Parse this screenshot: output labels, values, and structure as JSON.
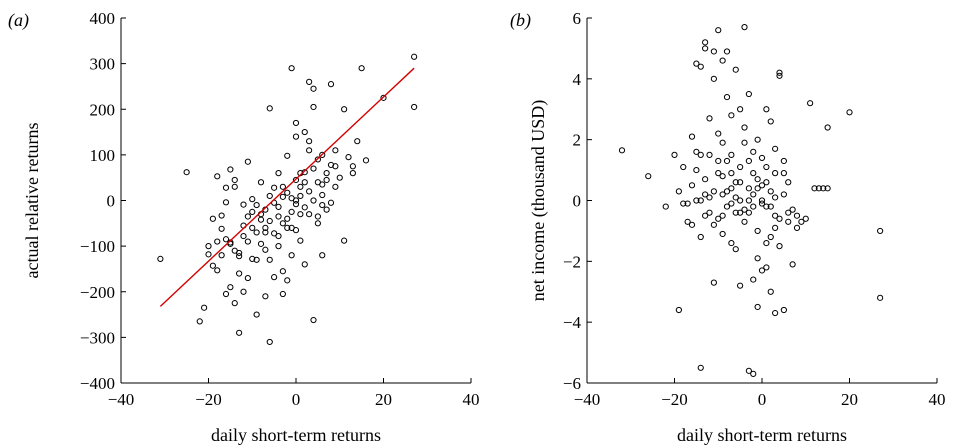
{
  "chart_data": [
    {
      "type": "scatter",
      "panel_label": "(a)",
      "xlabel": "daily short-term returns",
      "ylabel": "actual relative returns",
      "xlim": [
        -40,
        40
      ],
      "ylim": [
        -400,
        400
      ],
      "xticks": [
        -40,
        -20,
        0,
        20,
        40
      ],
      "yticks": [
        -400,
        -300,
        -200,
        -100,
        0,
        100,
        200,
        300,
        400
      ],
      "grid": false,
      "legend": "none",
      "fit_line": {
        "x": [
          -31,
          27
        ],
        "y": [
          -232,
          290
        ],
        "color": "#d40000"
      },
      "points": [
        [
          -31,
          -128
        ],
        [
          -25,
          62
        ],
        [
          -22,
          -265
        ],
        [
          -21,
          -235
        ],
        [
          -20,
          -100
        ],
        [
          -19,
          -143
        ],
        [
          -19,
          -40
        ],
        [
          -18,
          53
        ],
        [
          -17,
          -120
        ],
        [
          -17,
          -62
        ],
        [
          -16,
          28
        ],
        [
          -16,
          -4
        ],
        [
          -15,
          -95
        ],
        [
          -15,
          68
        ],
        [
          -14,
          45
        ],
        [
          -14,
          -225
        ],
        [
          -14,
          -110
        ],
        [
          -13,
          -115
        ],
        [
          -13,
          -122
        ],
        [
          -12,
          -78
        ],
        [
          -13,
          -290
        ],
        [
          -12,
          -9
        ],
        [
          -11,
          -35
        ],
        [
          -11,
          85
        ],
        [
          -11,
          -170
        ],
        [
          -10,
          -128
        ],
        [
          -10,
          3
        ],
        [
          -9,
          -250
        ],
        [
          -9,
          -130
        ],
        [
          -8,
          -95
        ],
        [
          -8,
          -42
        ],
        [
          -8,
          40
        ],
        [
          -7,
          -210
        ],
        [
          -7,
          -20
        ],
        [
          -7,
          -108
        ],
        [
          -6,
          -310
        ],
        [
          -6,
          10
        ],
        [
          -6,
          202
        ],
        [
          -5,
          -72
        ],
        [
          -5,
          -168
        ],
        [
          -4,
          60
        ],
        [
          -4,
          -14
        ],
        [
          -4,
          -35
        ],
        [
          -3,
          -155
        ],
        [
          -3,
          -205
        ],
        [
          -3,
          -50
        ],
        [
          -2,
          -60
        ],
        [
          -2,
          17
        ],
        [
          -2,
          98
        ],
        [
          -1,
          -25
        ],
        [
          -1,
          5
        ],
        [
          -1,
          -120
        ],
        [
          0,
          -8
        ],
        [
          0,
          45
        ],
        [
          0,
          140
        ],
        [
          1,
          -30
        ],
        [
          1,
          30
        ],
        [
          1,
          -88
        ],
        [
          2,
          62
        ],
        [
          2,
          -140
        ],
        [
          3,
          20
        ],
        [
          3,
          110
        ],
        [
          3,
          260
        ],
        [
          4,
          -262
        ],
        [
          4,
          0
        ],
        [
          4,
          245
        ],
        [
          5,
          90
        ],
        [
          5,
          -50
        ],
        [
          6,
          12
        ],
        [
          6,
          35
        ],
        [
          7,
          60
        ],
        [
          7,
          -20
        ],
        [
          8,
          78
        ],
        [
          8,
          255
        ],
        [
          9,
          110
        ],
        [
          10,
          50
        ],
        [
          11,
          -88
        ],
        [
          11,
          200
        ],
        [
          13,
          60
        ],
        [
          13,
          75
        ],
        [
          14,
          130
        ],
        [
          15,
          290
        ],
        [
          16,
          88
        ],
        [
          20,
          225
        ],
        [
          27,
          315
        ],
        [
          27,
          205
        ],
        [
          -1,
          290
        ],
        [
          -20,
          -118
        ],
        [
          -18,
          -153
        ],
        [
          -17,
          -33
        ],
        [
          -16,
          -85
        ],
        [
          -15,
          -92
        ],
        [
          -12,
          -55
        ],
        [
          -10,
          -60
        ],
        [
          -9,
          -70
        ],
        [
          -8,
          -30
        ],
        [
          -7,
          -70
        ],
        [
          -6,
          -45
        ],
        [
          -5,
          -5
        ],
        [
          -4,
          -100
        ],
        [
          -3,
          8
        ],
        [
          -2,
          -40
        ],
        [
          0,
          0
        ],
        [
          1,
          60
        ],
        [
          2,
          40
        ],
        [
          3,
          130
        ],
        [
          5,
          40
        ],
        [
          6,
          100
        ],
        [
          8,
          -5
        ],
        [
          9,
          30
        ],
        [
          -9,
          -10
        ],
        [
          -5,
          28
        ],
        [
          -3,
          30
        ],
        [
          0,
          -65
        ],
        [
          2,
          -15
        ],
        [
          4,
          70
        ],
        [
          6,
          -10
        ],
        [
          -11,
          -90
        ],
        [
          -13,
          -160
        ],
        [
          -16,
          -205
        ],
        [
          -18,
          -90
        ],
        [
          -15,
          -190
        ],
        [
          -12,
          -200
        ],
        [
          -10,
          -25
        ],
        [
          -7,
          -60
        ],
        [
          -4,
          -78
        ],
        [
          -1,
          -60
        ],
        [
          1,
          10
        ],
        [
          3,
          -30
        ],
        [
          5,
          -35
        ],
        [
          7,
          45
        ],
        [
          9,
          75
        ],
        [
          12,
          95
        ],
        [
          -14,
          30
        ],
        [
          -6,
          -130
        ],
        [
          -2,
          -175
        ],
        [
          0,
          170
        ],
        [
          2,
          150
        ],
        [
          4,
          205
        ],
        [
          6,
          -120
        ]
      ]
    },
    {
      "type": "scatter",
      "panel_label": "(b)",
      "xlabel": "daily short-term returns",
      "ylabel": "net income (thousand USD)",
      "xlim": [
        -40,
        40
      ],
      "ylim": [
        -6,
        6
      ],
      "xticks": [
        -40,
        -20,
        0,
        20,
        40
      ],
      "yticks": [
        -6,
        -4,
        -2,
        0,
        2,
        4,
        6
      ],
      "grid": false,
      "legend": "none",
      "points": [
        [
          -32,
          1.65
        ],
        [
          -26,
          0.8
        ],
        [
          -22,
          -0.2
        ],
        [
          -20,
          1.5
        ],
        [
          -19,
          0.3
        ],
        [
          -19,
          -3.6
        ],
        [
          -18,
          1.1
        ],
        [
          -17,
          -0.7
        ],
        [
          -17,
          -0.1
        ],
        [
          -16,
          0.5
        ],
        [
          -16,
          2.1
        ],
        [
          -15,
          1.0
        ],
        [
          -15,
          1.6
        ],
        [
          -15,
          4.5
        ],
        [
          -14,
          4.4
        ],
        [
          -14,
          0.0
        ],
        [
          -14,
          -5.5
        ],
        [
          -14,
          -1.2
        ],
        [
          -13,
          0.7
        ],
        [
          -13,
          0.2
        ],
        [
          -13,
          5.0
        ],
        [
          -13,
          5.2
        ],
        [
          -12,
          2.7
        ],
        [
          -12,
          -0.4
        ],
        [
          -12,
          1.5
        ],
        [
          -11,
          -0.8
        ],
        [
          -11,
          -2.7
        ],
        [
          -11,
          4.9
        ],
        [
          -11,
          4.0
        ],
        [
          -10,
          2.2
        ],
        [
          -10,
          1.3
        ],
        [
          -10,
          -0.6
        ],
        [
          -10,
          5.6
        ],
        [
          -9,
          4.6
        ],
        [
          -9,
          -1.1
        ],
        [
          -9,
          0.8
        ],
        [
          -9,
          1.9
        ],
        [
          -8,
          -0.2
        ],
        [
          -8,
          3.4
        ],
        [
          -8,
          4.9
        ],
        [
          -8,
          0.3
        ],
        [
          -7,
          -0.1
        ],
        [
          -7,
          -1.4
        ],
        [
          -7,
          2.8
        ],
        [
          -7,
          1.5
        ],
        [
          -6,
          0.6
        ],
        [
          -6,
          -0.4
        ],
        [
          -6,
          4.3
        ],
        [
          -6,
          -1.6
        ],
        [
          -5,
          1.1
        ],
        [
          -5,
          -2.8
        ],
        [
          -5,
          0.0
        ],
        [
          -5,
          3.0
        ],
        [
          -4,
          2.4
        ],
        [
          -4,
          5.7
        ],
        [
          -4,
          -0.3
        ],
        [
          -4,
          -0.7
        ],
        [
          -3,
          1.3
        ],
        [
          -3,
          -5.6
        ],
        [
          -3,
          3.5
        ],
        [
          -3,
          0.4
        ],
        [
          -2,
          -5.7
        ],
        [
          -2,
          0.9
        ],
        [
          -2,
          -0.2
        ],
        [
          -2,
          -2.6
        ],
        [
          -2,
          1.6
        ],
        [
          -1,
          0.7
        ],
        [
          -1,
          2.0
        ],
        [
          -1,
          -1.0
        ],
        [
          -1,
          -3.5
        ],
        [
          0,
          -2.3
        ],
        [
          0,
          0.5
        ],
        [
          0,
          0.0
        ],
        [
          0,
          1.4
        ],
        [
          1,
          3.0
        ],
        [
          1,
          -2.2
        ],
        [
          1,
          1.1
        ],
        [
          1,
          -0.2
        ],
        [
          2,
          0.3
        ],
        [
          2,
          2.6
        ],
        [
          2,
          -1.2
        ],
        [
          2,
          -3.0
        ],
        [
          3,
          0.9
        ],
        [
          3,
          -0.5
        ],
        [
          3,
          -3.7
        ],
        [
          3,
          1.7
        ],
        [
          4,
          4.2
        ],
        [
          4,
          4.1
        ],
        [
          4,
          -0.6
        ],
        [
          4,
          -1.5
        ],
        [
          5,
          0.2
        ],
        [
          5,
          -3.6
        ],
        [
          5,
          1.3
        ],
        [
          6,
          -0.4
        ],
        [
          6,
          -0.7
        ],
        [
          6,
          0.6
        ],
        [
          7,
          -0.3
        ],
        [
          7,
          -2.1
        ],
        [
          8,
          -0.5
        ],
        [
          8,
          -0.9
        ],
        [
          9,
          -0.7
        ],
        [
          10,
          -0.6
        ],
        [
          11,
          3.2
        ],
        [
          12,
          0.4
        ],
        [
          13,
          0.4
        ],
        [
          14,
          0.4
        ],
        [
          15,
          2.4
        ],
        [
          15,
          0.4
        ],
        [
          20,
          2.9
        ],
        [
          27,
          -1.0
        ],
        [
          27,
          -3.2
        ],
        [
          -18,
          -0.1
        ],
        [
          -16,
          -0.8
        ],
        [
          -14,
          1.5
        ],
        [
          -12,
          0.1
        ],
        [
          -10,
          0.9
        ],
        [
          -9,
          -0.5
        ],
        [
          -8,
          1.3
        ],
        [
          -7,
          0.4
        ],
        [
          -6,
          0.1
        ],
        [
          -5,
          -0.4
        ],
        [
          -4,
          1.9
        ],
        [
          -3,
          -0.4
        ],
        [
          -2,
          0.2
        ],
        [
          -1,
          0.4
        ],
        [
          0,
          -0.1
        ],
        [
          1,
          0.6
        ],
        [
          2,
          -0.2
        ],
        [
          3,
          0.1
        ],
        [
          -15,
          0.0
        ],
        [
          -11,
          0.3
        ],
        [
          -7,
          0.9
        ],
        [
          -3,
          0.0
        ],
        [
          1,
          -1.4
        ],
        [
          5,
          0.9
        ],
        [
          -13,
          -0.5
        ],
        [
          -9,
          0.2
        ],
        [
          -5,
          0.6
        ],
        [
          -1,
          -1.9
        ],
        [
          3,
          -0.9
        ]
      ]
    }
  ]
}
